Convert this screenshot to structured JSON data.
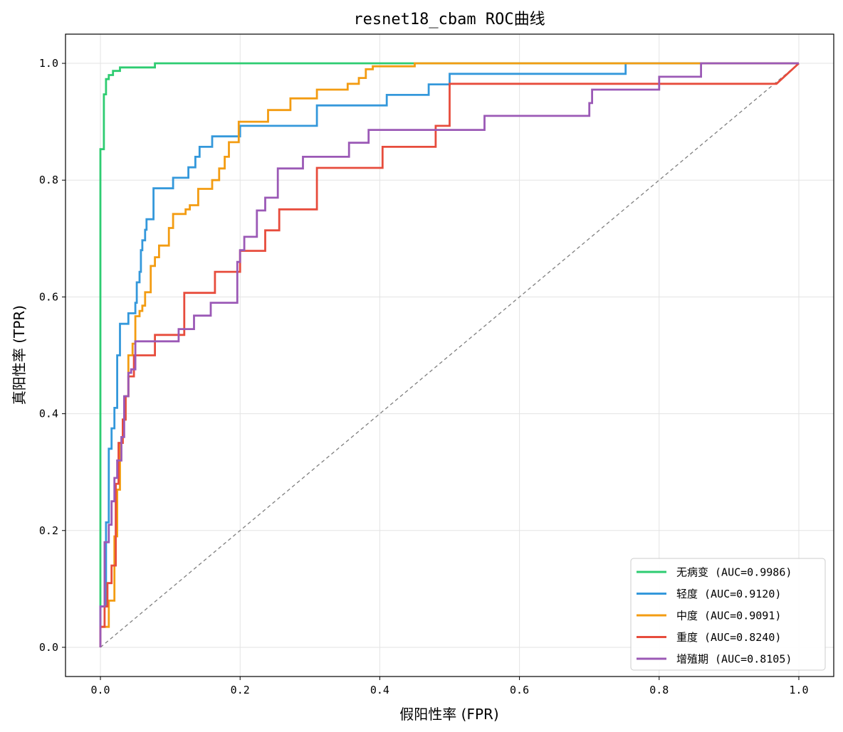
{
  "chart_data": {
    "type": "line",
    "title": "resnet18_cbam ROC曲线",
    "xlabel": "假阳性率 (FPR)",
    "ylabel": "真阳性率 (TPR)",
    "xlim": [
      -0.05,
      1.05
    ],
    "ylim": [
      -0.05,
      1.05
    ],
    "x_ticks": [
      "0.0",
      "0.2",
      "0.4",
      "0.6",
      "0.8",
      "1.0"
    ],
    "y_ticks": [
      "0.0",
      "0.2",
      "0.4",
      "0.6",
      "0.8",
      "1.0"
    ],
    "grid": true,
    "legend_position": "bottom-right",
    "reference_line": {
      "x": [
        0,
        1
      ],
      "y": [
        0,
        1
      ],
      "color": "#7f7f7f",
      "style": "dashed"
    },
    "series": [
      {
        "name": "无病变 (AUC=0.9986)",
        "color": "#2ecc71",
        "x": [
          0,
          0,
          0.005,
          0.005,
          0.008,
          0.008,
          0.012,
          0.012,
          0.018,
          0.018,
          0.028,
          0.028,
          0.078,
          0.078,
          1.0
        ],
        "y": [
          0,
          0.853,
          0.853,
          0.947,
          0.947,
          0.973,
          0.973,
          0.98,
          0.98,
          0.987,
          0.987,
          0.993,
          0.993,
          1.0,
          1.0
        ]
      },
      {
        "name": "轻度 (AUC=0.9120)",
        "color": "#3498db",
        "x": [
          0,
          0,
          0.008,
          0.008,
          0.012,
          0.012,
          0.016,
          0.016,
          0.02,
          0.02,
          0.024,
          0.024,
          0.028,
          0.028,
          0.04,
          0.04,
          0.05,
          0.05,
          0.052,
          0.052,
          0.056,
          0.056,
          0.058,
          0.058,
          0.06,
          0.06,
          0.064,
          0.064,
          0.066,
          0.066,
          0.072,
          0.072,
          0.076,
          0.076,
          0.08,
          0.08,
          0.104,
          0.104,
          0.126,
          0.126,
          0.136,
          0.136,
          0.142,
          0.142,
          0.16,
          0.16,
          0.2,
          0.2,
          0.31,
          0.31,
          0.41,
          0.41,
          0.47,
          0.47,
          0.5,
          0.5,
          0.752,
          0.752,
          1.0
        ],
        "y": [
          0,
          0.07,
          0.07,
          0.214,
          0.214,
          0.34,
          0.34,
          0.375,
          0.375,
          0.41,
          0.41,
          0.5,
          0.5,
          0.554,
          0.554,
          0.572,
          0.572,
          0.59,
          0.59,
          0.625,
          0.625,
          0.643,
          0.643,
          0.68,
          0.68,
          0.697,
          0.697,
          0.715,
          0.715,
          0.733,
          0.733,
          0.733,
          0.733,
          0.786,
          0.786,
          0.786,
          0.786,
          0.804,
          0.804,
          0.822,
          0.822,
          0.84,
          0.84,
          0.857,
          0.857,
          0.875,
          0.875,
          0.893,
          0.893,
          0.928,
          0.928,
          0.946,
          0.946,
          0.964,
          0.964,
          0.982,
          0.982,
          1.0,
          1.0
        ]
      },
      {
        "name": "中度 (AUC=0.9091)",
        "color": "#f39c12",
        "x": [
          0,
          0,
          0.012,
          0.012,
          0.02,
          0.02,
          0.024,
          0.024,
          0.028,
          0.028,
          0.032,
          0.032,
          0.036,
          0.036,
          0.04,
          0.04,
          0.046,
          0.046,
          0.05,
          0.05,
          0.056,
          0.056,
          0.06,
          0.06,
          0.064,
          0.064,
          0.072,
          0.072,
          0.078,
          0.078,
          0.084,
          0.084,
          0.098,
          0.098,
          0.104,
          0.104,
          0.122,
          0.122,
          0.128,
          0.128,
          0.14,
          0.14,
          0.16,
          0.16,
          0.17,
          0.17,
          0.178,
          0.178,
          0.184,
          0.184,
          0.198,
          0.198,
          0.24,
          0.24,
          0.272,
          0.272,
          0.31,
          0.31,
          0.354,
          0.354,
          0.37,
          0.37,
          0.38,
          0.38,
          0.39,
          0.39,
          0.45,
          0.45,
          0.886,
          0.886,
          1.0
        ],
        "y": [
          0,
          0.035,
          0.035,
          0.08,
          0.08,
          0.19,
          0.19,
          0.27,
          0.27,
          0.35,
          0.35,
          0.39,
          0.39,
          0.43,
          0.43,
          0.5,
          0.5,
          0.52,
          0.52,
          0.567,
          0.567,
          0.576,
          0.576,
          0.585,
          0.585,
          0.608,
          0.608,
          0.653,
          0.653,
          0.668,
          0.668,
          0.688,
          0.688,
          0.718,
          0.718,
          0.742,
          0.742,
          0.75,
          0.75,
          0.757,
          0.757,
          0.785,
          0.785,
          0.8,
          0.8,
          0.82,
          0.82,
          0.84,
          0.84,
          0.865,
          0.865,
          0.9,
          0.9,
          0.92,
          0.92,
          0.94,
          0.94,
          0.955,
          0.955,
          0.965,
          0.965,
          0.975,
          0.975,
          0.99,
          0.99,
          0.995,
          0.995,
          1.0,
          1.0,
          1.0,
          1.0
        ]
      },
      {
        "name": "重度 (AUC=0.8240)",
        "color": "#e74c3c",
        "x": [
          0,
          0,
          0.006,
          0.006,
          0.01,
          0.01,
          0.016,
          0.016,
          0.022,
          0.022,
          0.026,
          0.026,
          0.032,
          0.032,
          0.036,
          0.036,
          0.04,
          0.04,
          0.048,
          0.048,
          0.078,
          0.078,
          0.12,
          0.12,
          0.164,
          0.164,
          0.2,
          0.2,
          0.236,
          0.236,
          0.256,
          0.256,
          0.31,
          0.31,
          0.36,
          0.36,
          0.404,
          0.404,
          0.48,
          0.48,
          0.5,
          0.5,
          0.968,
          0.968,
          1.0
        ],
        "y": [
          0,
          0.035,
          0.035,
          0.07,
          0.07,
          0.11,
          0.11,
          0.14,
          0.14,
          0.28,
          0.28,
          0.35,
          0.35,
          0.39,
          0.39,
          0.43,
          0.43,
          0.464,
          0.464,
          0.5,
          0.5,
          0.535,
          0.535,
          0.607,
          0.607,
          0.643,
          0.643,
          0.679,
          0.679,
          0.714,
          0.714,
          0.75,
          0.75,
          0.821,
          0.821,
          0.821,
          0.821,
          0.857,
          0.857,
          0.893,
          0.893,
          0.965,
          0.965,
          0.965,
          1.0
        ]
      },
      {
        "name": "增殖期 (AUC=0.8105)",
        "color": "#9b59b6",
        "x": [
          0,
          0,
          0.006,
          0.006,
          0.012,
          0.012,
          0.016,
          0.016,
          0.02,
          0.02,
          0.024,
          0.024,
          0.03,
          0.03,
          0.034,
          0.034,
          0.04,
          0.04,
          0.044,
          0.044,
          0.05,
          0.05,
          0.062,
          0.062,
          0.086,
          0.086,
          0.112,
          0.112,
          0.134,
          0.134,
          0.158,
          0.158,
          0.196,
          0.196,
          0.2,
          0.2,
          0.206,
          0.206,
          0.224,
          0.224,
          0.236,
          0.236,
          0.254,
          0.254,
          0.29,
          0.29,
          0.356,
          0.356,
          0.36,
          0.36,
          0.384,
          0.384,
          0.414,
          0.414,
          0.55,
          0.55,
          0.7,
          0.7,
          0.704,
          0.704,
          0.8,
          0.8,
          0.86,
          0.86,
          0.886,
          0.886,
          1.0
        ],
        "y": [
          0,
          0.07,
          0.07,
          0.18,
          0.18,
          0.21,
          0.21,
          0.25,
          0.25,
          0.29,
          0.29,
          0.32,
          0.32,
          0.36,
          0.36,
          0.43,
          0.43,
          0.47,
          0.47,
          0.476,
          0.476,
          0.524,
          0.524,
          0.524,
          0.524,
          0.524,
          0.524,
          0.545,
          0.545,
          0.568,
          0.568,
          0.59,
          0.59,
          0.66,
          0.66,
          0.68,
          0.68,
          0.703,
          0.703,
          0.748,
          0.748,
          0.77,
          0.77,
          0.82,
          0.82,
          0.84,
          0.84,
          0.864,
          0.864,
          0.864,
          0.864,
          0.886,
          0.886,
          0.886,
          0.886,
          0.91,
          0.91,
          0.932,
          0.932,
          0.955,
          0.955,
          0.977,
          0.977,
          1.0,
          1.0,
          1.0,
          1.0
        ]
      }
    ]
  }
}
